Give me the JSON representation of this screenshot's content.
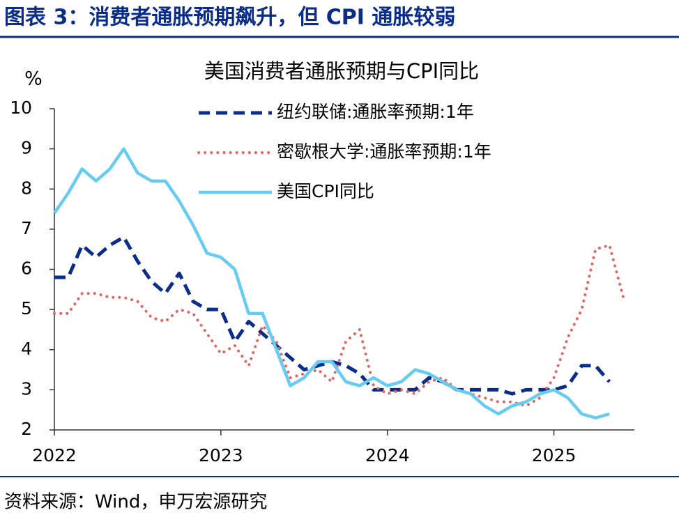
{
  "header": {
    "title": "图表 3：消费者通胀预期飙升，但 CPI 通胀较弱"
  },
  "chart_data": {
    "type": "line",
    "title": "美国消费者通胀预期与CPI同比",
    "y_unit": "%",
    "categories": [
      "2022",
      null,
      null,
      null,
      null,
      null,
      null,
      null,
      null,
      null,
      null,
      null,
      "2023",
      null,
      null,
      null,
      null,
      null,
      null,
      null,
      null,
      null,
      null,
      null,
      "2024",
      null,
      null,
      null,
      null,
      null,
      null,
      null,
      null,
      null,
      null,
      null,
      "2025",
      null,
      null,
      null,
      null,
      null
    ],
    "series": [
      {
        "name": "纽约联储:通胀率预期:1年",
        "color": "#0b2d8a",
        "style": "dashed",
        "values": [
          5.8,
          5.8,
          6.6,
          6.3,
          6.6,
          6.8,
          6.2,
          5.7,
          5.4,
          5.9,
          5.2,
          5.0,
          5.0,
          4.2,
          4.7,
          4.4,
          4.1,
          3.8,
          3.5,
          3.6,
          3.7,
          3.6,
          3.4,
          3.0,
          3.0,
          3.0,
          3.0,
          3.3,
          3.2,
          3.0,
          3.0,
          3.0,
          3.0,
          2.9,
          3.0,
          3.0,
          3.0,
          3.1,
          3.6,
          3.6,
          3.2,
          null
        ]
      },
      {
        "name": "密歇根大学:通胀率预期:1年",
        "color": "#e06666",
        "style": "dotted",
        "values": [
          4.9,
          4.9,
          5.4,
          5.4,
          5.3,
          5.3,
          5.2,
          4.8,
          4.7,
          5.0,
          4.9,
          4.4,
          3.9,
          4.1,
          3.6,
          4.6,
          4.2,
          3.3,
          3.4,
          3.5,
          3.2,
          4.2,
          4.5,
          3.1,
          2.9,
          3.0,
          2.9,
          3.2,
          3.3,
          3.0,
          2.9,
          2.8,
          2.7,
          2.7,
          2.6,
          2.8,
          3.3,
          4.3,
          5.0,
          6.5,
          6.6,
          5.3
        ]
      },
      {
        "name": "美国CPI同比",
        "color": "#66ccf2",
        "style": "solid",
        "values": [
          7.4,
          7.9,
          8.5,
          8.2,
          8.5,
          9.0,
          8.4,
          8.2,
          8.2,
          7.7,
          7.1,
          6.4,
          6.3,
          6.0,
          4.9,
          4.9,
          4.0,
          3.1,
          3.3,
          3.7,
          3.7,
          3.2,
          3.1,
          3.3,
          3.1,
          3.2,
          3.5,
          3.4,
          3.2,
          3.0,
          2.9,
          2.6,
          2.4,
          2.6,
          2.7,
          2.9,
          3.0,
          2.8,
          2.4,
          2.3,
          2.4,
          null
        ]
      }
    ],
    "ylim": [
      2,
      10
    ],
    "yticks": [
      2,
      3,
      4,
      5,
      6,
      7,
      8,
      9,
      10
    ],
    "grid": false
  },
  "source": "资料来源：Wind，申万宏源研究"
}
